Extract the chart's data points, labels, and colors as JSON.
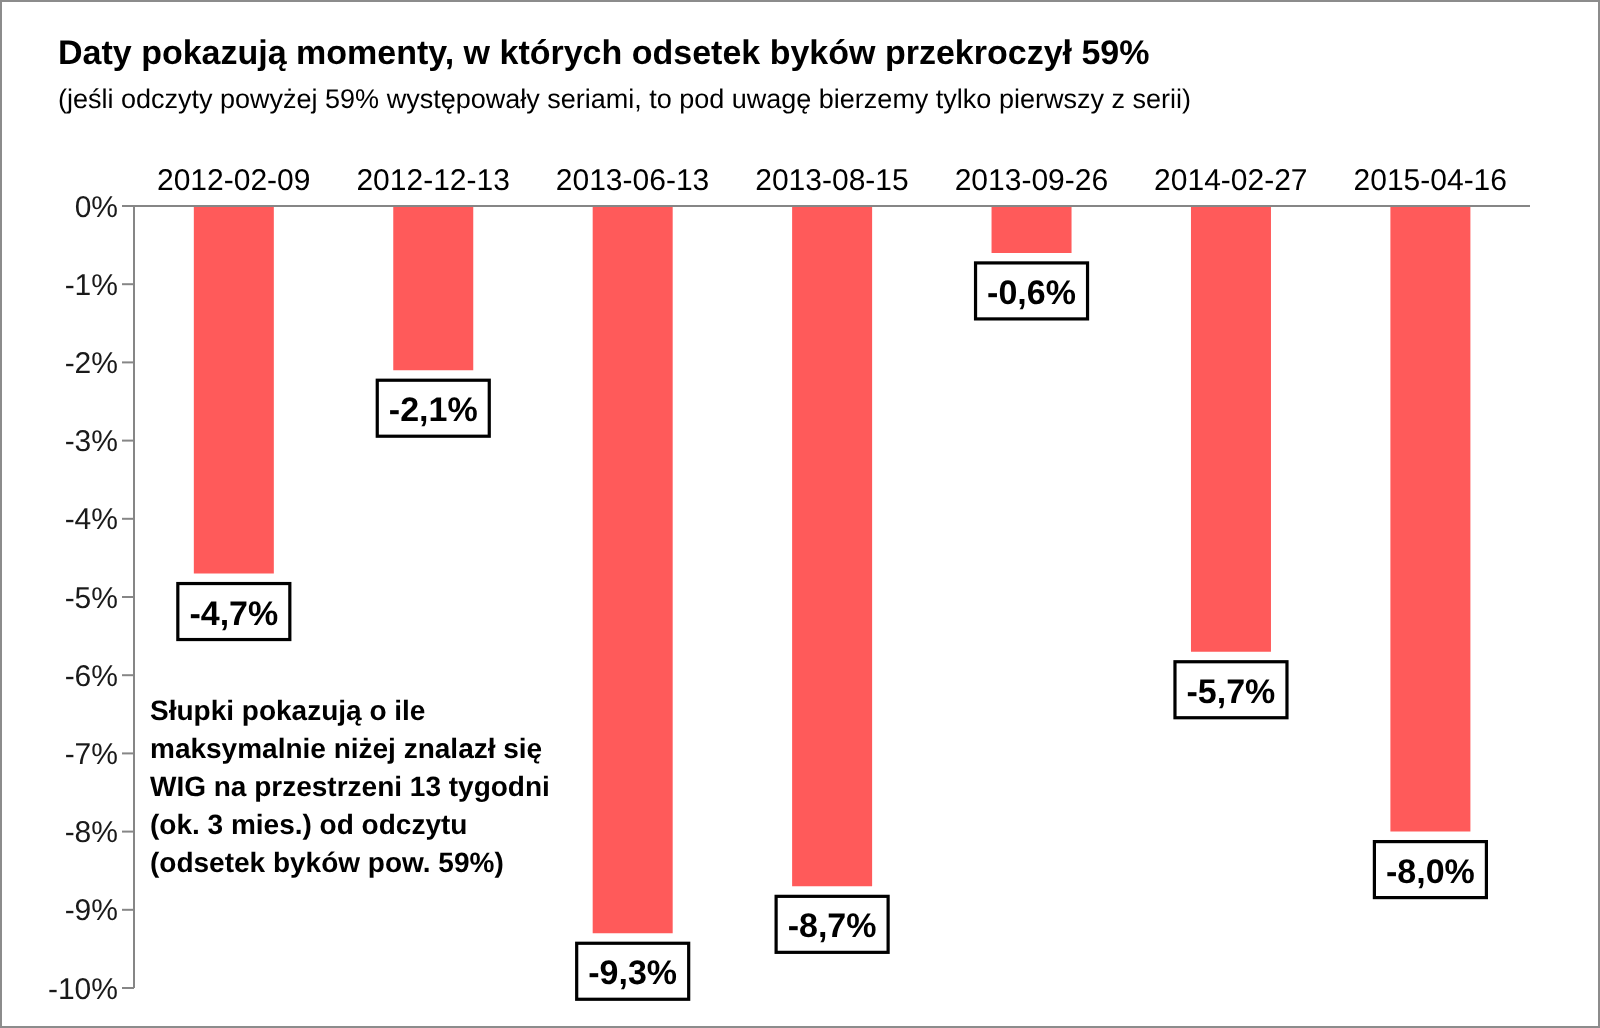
{
  "chart_data": {
    "type": "bar",
    "title": "Daty pokazują momenty, w których odsetek byków przekroczył 59%",
    "subtitle": "(jeśli odczyty powyżej 59% występowały seriami, to pod uwagę bierzemy tylko pierwszy z serii)",
    "categories": [
      "2012-02-09",
      "2012-12-13",
      "2013-06-13",
      "2013-08-15",
      "2013-09-26",
      "2014-02-27",
      "2015-04-16"
    ],
    "values": [
      -4.7,
      -2.1,
      -9.3,
      -8.7,
      -0.6,
      -5.7,
      -8.0
    ],
    "value_labels": [
      "-4,7%",
      "-2,1%",
      "-9,3%",
      "-8,7%",
      "-0,6%",
      "-5,7%",
      "-8,0%"
    ],
    "color": "#ff5a5a",
    "ylim": [
      -10,
      0
    ],
    "yticks": [
      {
        "value": 0,
        "label": "0%"
      },
      {
        "value": -1,
        "label": "-1%"
      },
      {
        "value": -2,
        "label": "-2%"
      },
      {
        "value": -3,
        "label": "-3%"
      },
      {
        "value": -4,
        "label": "-4%"
      },
      {
        "value": -5,
        "label": "-5%"
      },
      {
        "value": -6,
        "label": "-6%"
      },
      {
        "value": -7,
        "label": "-7%"
      },
      {
        "value": -8,
        "label": "-8%"
      },
      {
        "value": -9,
        "label": "-9%"
      },
      {
        "value": -10,
        "label": "-10%"
      }
    ],
    "annotations": [
      "Słupki pokazują o ile maksymalnie niżej znalazł się WIG na przestrzeni 13 tygodni (ok. 3 mies.) od odczytu (odsetek byków pow. 59%)"
    ]
  }
}
